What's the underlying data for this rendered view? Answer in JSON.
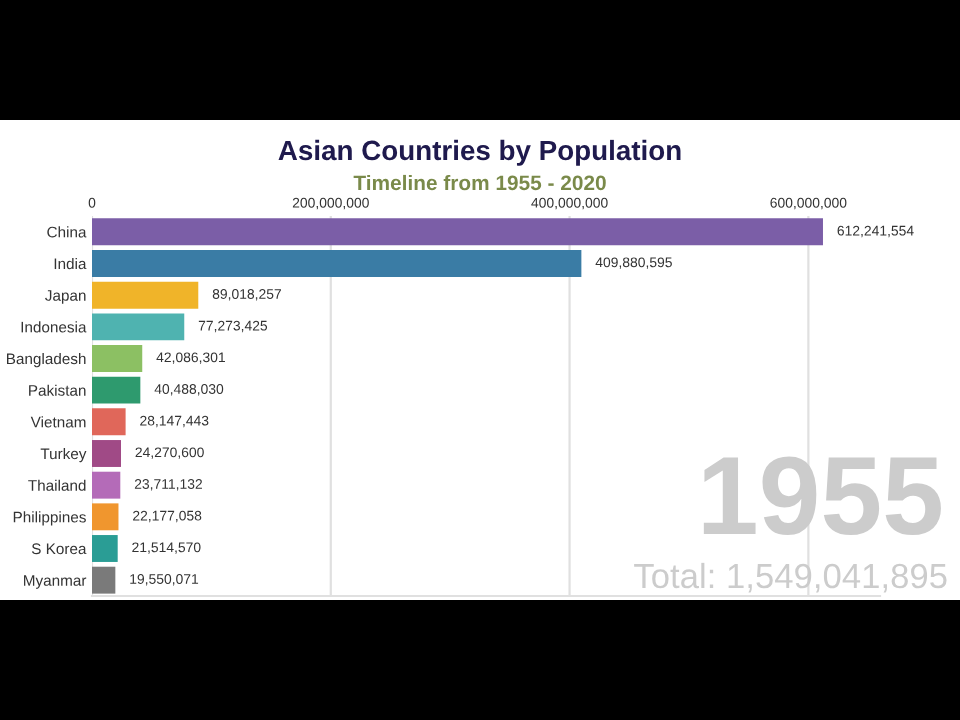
{
  "chart_data": {
    "type": "bar",
    "orientation": "horizontal",
    "title": "Asian Countries by Population",
    "subtitle": "Timeline from 1955 - 2020",
    "categories": [
      "China",
      "India",
      "Japan",
      "Indonesia",
      "Bangladesh",
      "Pakistan",
      "Vietnam",
      "Turkey",
      "Thailand",
      "Philippines",
      "S Korea",
      "Myanmar"
    ],
    "values": [
      612241554,
      409880595,
      89018257,
      77273425,
      42086301,
      40488030,
      28147443,
      24270600,
      23711132,
      22177058,
      21514570,
      19550071
    ],
    "value_labels": [
      "612,241,554",
      "409,880,595",
      "89,018,257",
      "77,273,425",
      "42,086,301",
      "40,488,030",
      "28,147,443",
      "24,270,600",
      "23,711,132",
      "22,177,058",
      "21,514,570",
      "19,550,071"
    ],
    "colors": [
      "#7b5ea7",
      "#3a7ca5",
      "#f0b429",
      "#4fb3b0",
      "#8cc063",
      "#2e9a6e",
      "#e0675a",
      "#a04a86",
      "#b46bb8",
      "#f0962e",
      "#2a9d95",
      "#7a7a7a"
    ],
    "xlim": [
      0,
      660000000
    ],
    "xticks": [
      0,
      {
        "value": 200000000,
        "label": "200,000,000"
      },
      {
        "value": 400000000,
        "label": "400,000,000"
      },
      {
        "value": 600000000,
        "label": "600,000,000"
      }
    ],
    "grid": "x",
    "annotations": [
      "1955",
      "Total: 1,549,041,895"
    ]
  }
}
